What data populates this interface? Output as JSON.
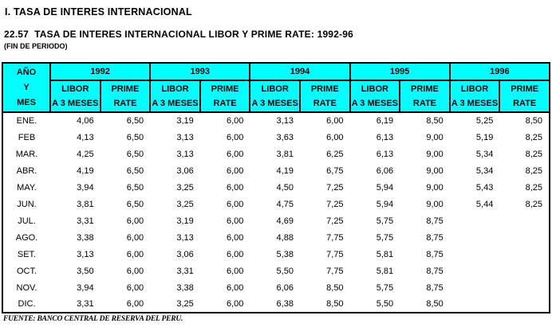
{
  "page": {
    "section_title": "I. TASA DE INTERES INTERNACIONAL",
    "table_title": "22.57  TASA DE INTERES INTERNACIONAL LIBOR Y PRIME RATE: 1992-96",
    "period_note": "(FIN DE PERIODO)",
    "source": "FUENTE: BANCO CENTRAL DE RESERVA DEL PERU."
  },
  "table": {
    "corner": [
      "AÑO",
      "Y",
      "MES"
    ],
    "years": [
      "1992",
      "1993",
      "1994",
      "1995",
      "1996"
    ],
    "subheaders": {
      "libor": [
        "LIBOR",
        "A 3 MESES"
      ],
      "prime": [
        "PRIME",
        "RATE"
      ]
    },
    "colors": {
      "header_bg": "#00ffff",
      "border": "#000000",
      "text": "#000000"
    },
    "rows": [
      {
        "month": "ENE.",
        "values": [
          "4,06",
          "6,50",
          "3,19",
          "6,00",
          "3,13",
          "6,00",
          "6,19",
          "8,50",
          "5,25",
          "8,50"
        ]
      },
      {
        "month": "FEB",
        "values": [
          "4,13",
          "6,50",
          "3,13",
          "6,00",
          "3,63",
          "6,00",
          "6,13",
          "9,00",
          "5,19",
          "8,25"
        ]
      },
      {
        "month": "MAR.",
        "values": [
          "4,25",
          "6,50",
          "3,13",
          "6,00",
          "3,81",
          "6,25",
          "6,13",
          "9,00",
          "5,34",
          "8,25"
        ]
      },
      {
        "month": "ABR.",
        "values": [
          "4,19",
          "6,50",
          "3,06",
          "6,00",
          "4,19",
          "6,75",
          "6,06",
          "9,00",
          "5,34",
          "8,25"
        ]
      },
      {
        "month": "MAY.",
        "values": [
          "3,94",
          "6,50",
          "3,25",
          "6,00",
          "4,50",
          "7,25",
          "5,94",
          "9,00",
          "5,43",
          "8,25"
        ]
      },
      {
        "month": "JUN.",
        "values": [
          "3,81",
          "6,50",
          "3,25",
          "6,00",
          "4,75",
          "7,25",
          "5,94",
          "9,00",
          "5,44",
          "8,25"
        ]
      },
      {
        "month": "JUL.",
        "values": [
          "3,31",
          "6,00",
          "3,19",
          "6,00",
          "4,69",
          "7,25",
          "5,75",
          "8,75",
          "",
          ""
        ]
      },
      {
        "month": "AGO.",
        "values": [
          "3,38",
          "6,00",
          "3,13",
          "6,00",
          "4,88",
          "7,75",
          "5,75",
          "8,75",
          "",
          ""
        ]
      },
      {
        "month": "SET.",
        "values": [
          "3,13",
          "6,00",
          "3,06",
          "6,00",
          "5,38",
          "7,75",
          "5,81",
          "8,75",
          "",
          ""
        ]
      },
      {
        "month": "OCT.",
        "values": [
          "3,50",
          "6,00",
          "3,31",
          "6,00",
          "5,50",
          "7,75",
          "5,81",
          "8,75",
          "",
          ""
        ]
      },
      {
        "month": "NOV.",
        "values": [
          "3,94",
          "6,00",
          "3,38",
          "6,00",
          "6,06",
          "8,50",
          "5,75",
          "8,75",
          "",
          ""
        ]
      },
      {
        "month": "DIC.",
        "values": [
          "3,31",
          "6,00",
          "3,25",
          "6,00",
          "6,38",
          "8,50",
          "5,50",
          "8,50",
          "",
          ""
        ]
      }
    ]
  }
}
